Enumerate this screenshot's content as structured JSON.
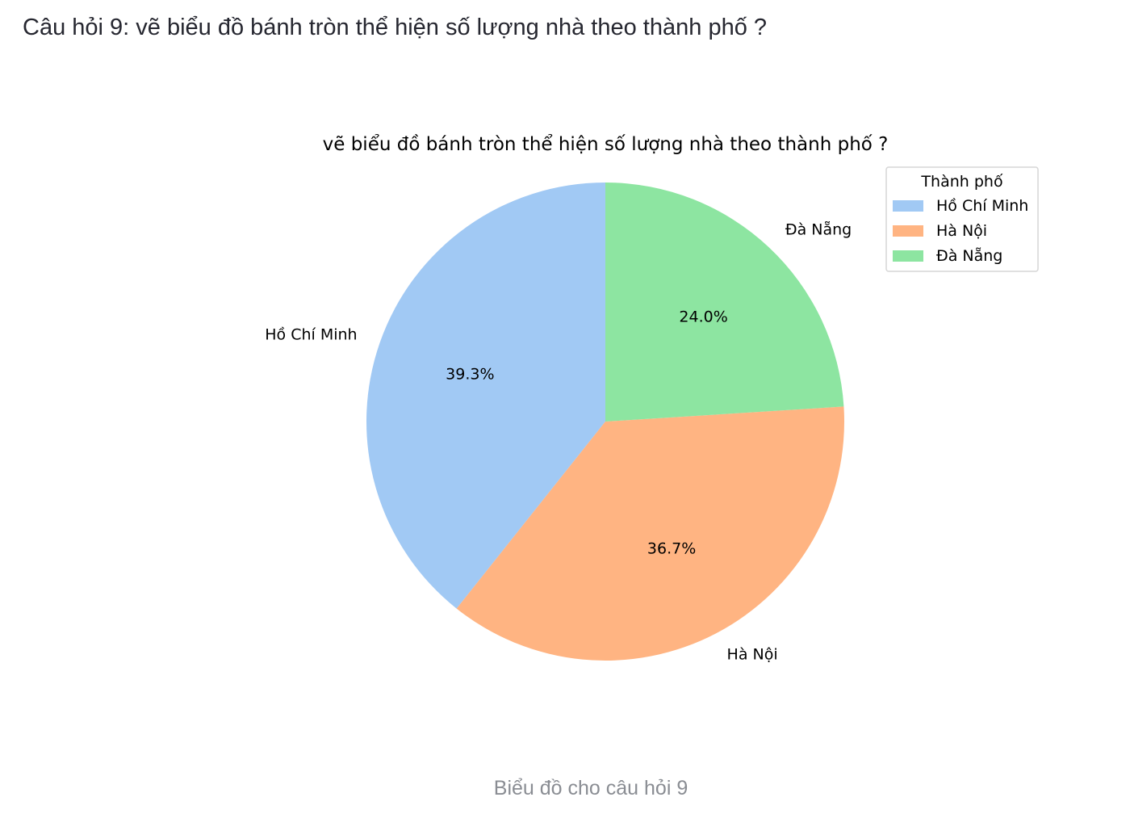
{
  "question": {
    "text": "Câu hỏi 9: vẽ biểu đồ bánh tròn thể hiện số lượng nhà theo thành phố ?"
  },
  "caption": {
    "text": "Biểu đồ cho câu hỏi 9"
  },
  "chart_data": {
    "type": "pie",
    "title": "vẽ biểu đồ bánh tròn thể hiện số lượng nhà theo thành phố ?",
    "legend": {
      "title": "Thành phố",
      "placement": "upper-right"
    },
    "start_angle_deg": 90,
    "counterclockwise": true,
    "slices": [
      {
        "label": "Hồ Chí Minh",
        "value": 39.3,
        "pct_label": "39.3%",
        "color": "#a1c9f4"
      },
      {
        "label": "Hà Nội",
        "value": 36.7,
        "pct_label": "36.7%",
        "color": "#ffb482"
      },
      {
        "label": "Đà Nẵng",
        "value": 24.0,
        "pct_label": "24.0%",
        "color": "#8de5a1"
      }
    ]
  }
}
